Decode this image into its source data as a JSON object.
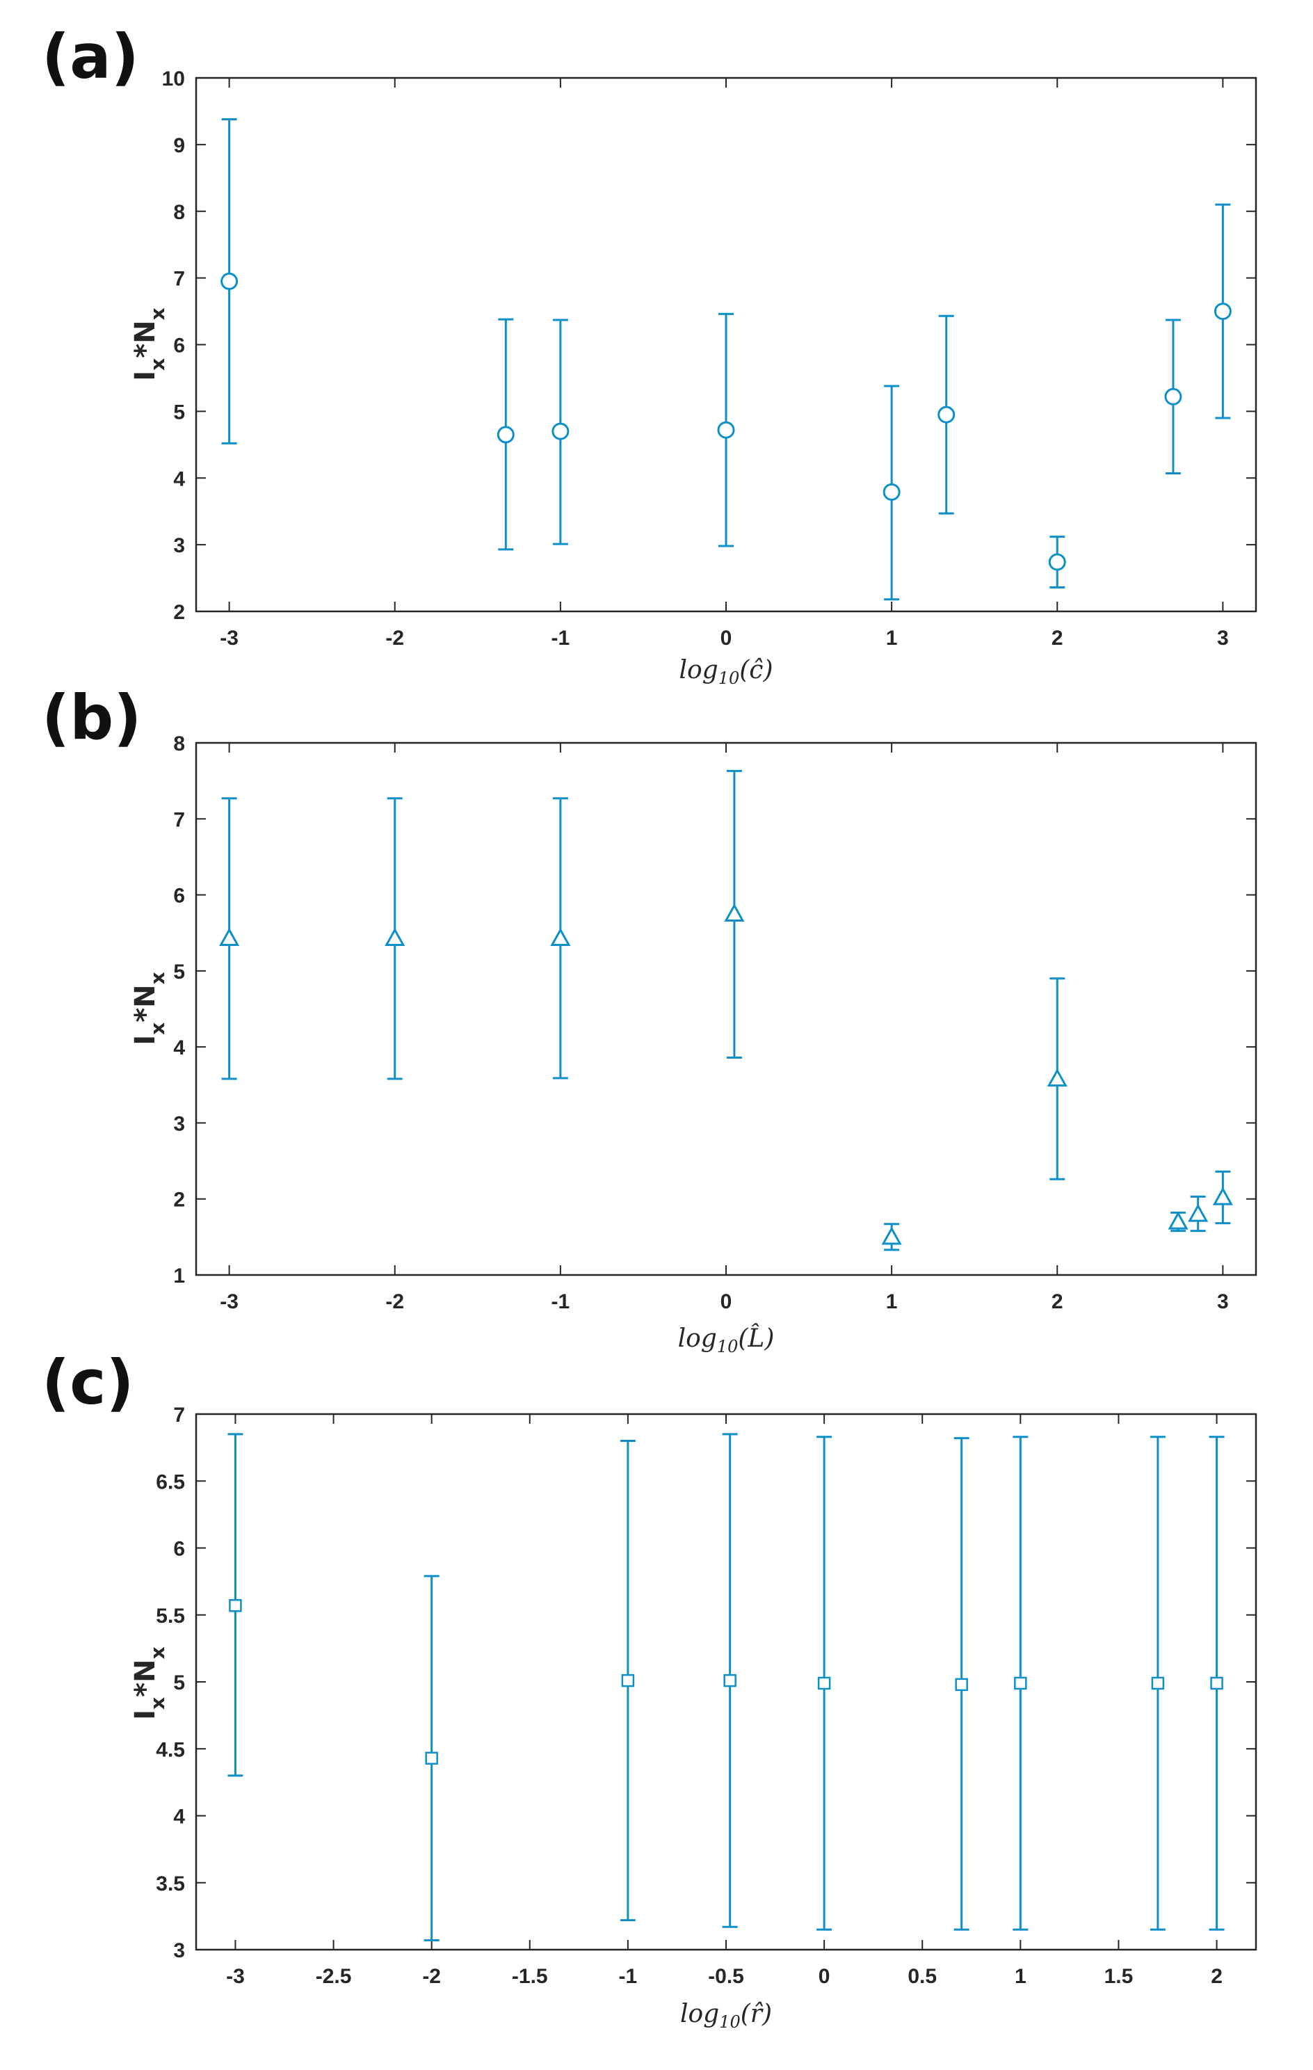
{
  "colors": {
    "series": "#0e8fc7",
    "axis": "#262626"
  },
  "chart_data": [
    {
      "panel_label": "(a)",
      "type": "scatter",
      "marker": "circle",
      "ylabel": "I_x*N_x",
      "xlabel": "log10(ĉ)",
      "xlim": [
        -3.2,
        3.2
      ],
      "ylim": [
        2,
        10
      ],
      "xticks": [
        -3,
        -2,
        -1,
        0,
        1,
        2,
        3
      ],
      "xticklabels": [
        "-3",
        "-2",
        "-1",
        "0",
        "1",
        "2",
        "3"
      ],
      "yticks": [
        2,
        3,
        4,
        5,
        6,
        7,
        8,
        9,
        10
      ],
      "yticklabels": [
        "2",
        "3",
        "4",
        "5",
        "6",
        "7",
        "8",
        "9",
        "10"
      ],
      "points": [
        {
          "x": -3,
          "y": 6.95,
          "lo": 4.52,
          "hi": 9.38
        },
        {
          "x": -1.33,
          "y": 4.65,
          "lo": 2.93,
          "hi": 6.38
        },
        {
          "x": -1,
          "y": 4.7,
          "lo": 3.01,
          "hi": 6.37
        },
        {
          "x": 0,
          "y": 4.72,
          "lo": 2.98,
          "hi": 6.46
        },
        {
          "x": 1,
          "y": 3.79,
          "lo": 2.18,
          "hi": 5.38
        },
        {
          "x": 1.33,
          "y": 4.95,
          "lo": 3.47,
          "hi": 6.43
        },
        {
          "x": 2,
          "y": 2.74,
          "lo": 2.36,
          "hi": 3.12
        },
        {
          "x": 2.7,
          "y": 5.22,
          "lo": 4.07,
          "hi": 6.37
        },
        {
          "x": 3,
          "y": 6.5,
          "lo": 4.9,
          "hi": 8.1
        }
      ]
    },
    {
      "panel_label": "(b)",
      "type": "scatter",
      "marker": "triangle",
      "ylabel": "I_x*N_x",
      "xlabel": "log10(L̂)",
      "xlim": [
        -3.2,
        3.2
      ],
      "ylim": [
        1,
        8
      ],
      "xticks": [
        -3,
        -2,
        -1,
        0,
        1,
        2,
        3
      ],
      "xticklabels": [
        "-3",
        "-2",
        "-1",
        "0",
        "1",
        "2",
        "3"
      ],
      "yticks": [
        1,
        2,
        3,
        4,
        5,
        6,
        7,
        8
      ],
      "yticklabels": [
        "1",
        "2",
        "3",
        "4",
        "5",
        "6",
        "7",
        "8"
      ],
      "points": [
        {
          "x": -3,
          "y": 5.43,
          "lo": 3.58,
          "hi": 7.27
        },
        {
          "x": -2,
          "y": 5.43,
          "lo": 3.58,
          "hi": 7.27
        },
        {
          "x": -1,
          "y": 5.43,
          "lo": 3.59,
          "hi": 7.27
        },
        {
          "x": 0.05,
          "y": 5.75,
          "lo": 3.86,
          "hi": 7.63
        },
        {
          "x": 1,
          "y": 1.5,
          "lo": 1.33,
          "hi": 1.67
        },
        {
          "x": 2,
          "y": 3.58,
          "lo": 2.26,
          "hi": 4.9
        },
        {
          "x": 2.73,
          "y": 1.7,
          "lo": 1.58,
          "hi": 1.82
        },
        {
          "x": 2.85,
          "y": 1.8,
          "lo": 1.58,
          "hi": 2.03
        },
        {
          "x": 3,
          "y": 2.02,
          "lo": 1.68,
          "hi": 2.36
        }
      ]
    },
    {
      "panel_label": "(c)",
      "type": "scatter",
      "marker": "square",
      "ylabel": "I_x*N_x",
      "xlabel": "log10(r̂)",
      "xlim": [
        -3.2,
        2.2
      ],
      "ylim": [
        3,
        7
      ],
      "xticks": [
        -3,
        -2.5,
        -2,
        -1.5,
        -1,
        -0.5,
        0,
        0.5,
        1,
        1.5,
        2
      ],
      "xticklabels": [
        "-3",
        "-2.5",
        "-2",
        "-1.5",
        "-1",
        "-0.5",
        "0",
        "0.5",
        "1",
        "1.5",
        "2"
      ],
      "yticks": [
        3,
        3.5,
        4,
        4.5,
        5,
        5.5,
        6,
        6.5,
        7
      ],
      "yticklabels": [
        "3",
        "3.5",
        "4",
        "4.5",
        "5",
        "5.5",
        "6",
        "6.5",
        "7"
      ],
      "points": [
        {
          "x": -3,
          "y": 5.57,
          "lo": 4.3,
          "hi": 6.85
        },
        {
          "x": -2,
          "y": 4.43,
          "lo": 3.07,
          "hi": 5.79
        },
        {
          "x": -1,
          "y": 5.01,
          "lo": 3.22,
          "hi": 6.8
        },
        {
          "x": -0.48,
          "y": 5.01,
          "lo": 3.17,
          "hi": 6.85
        },
        {
          "x": 0,
          "y": 4.99,
          "lo": 3.15,
          "hi": 6.83
        },
        {
          "x": 0.7,
          "y": 4.98,
          "lo": 3.15,
          "hi": 6.82
        },
        {
          "x": 1,
          "y": 4.99,
          "lo": 3.15,
          "hi": 6.83
        },
        {
          "x": 1.7,
          "y": 4.99,
          "lo": 3.15,
          "hi": 6.83
        },
        {
          "x": 2,
          "y": 4.99,
          "lo": 3.15,
          "hi": 6.83
        }
      ]
    }
  ]
}
